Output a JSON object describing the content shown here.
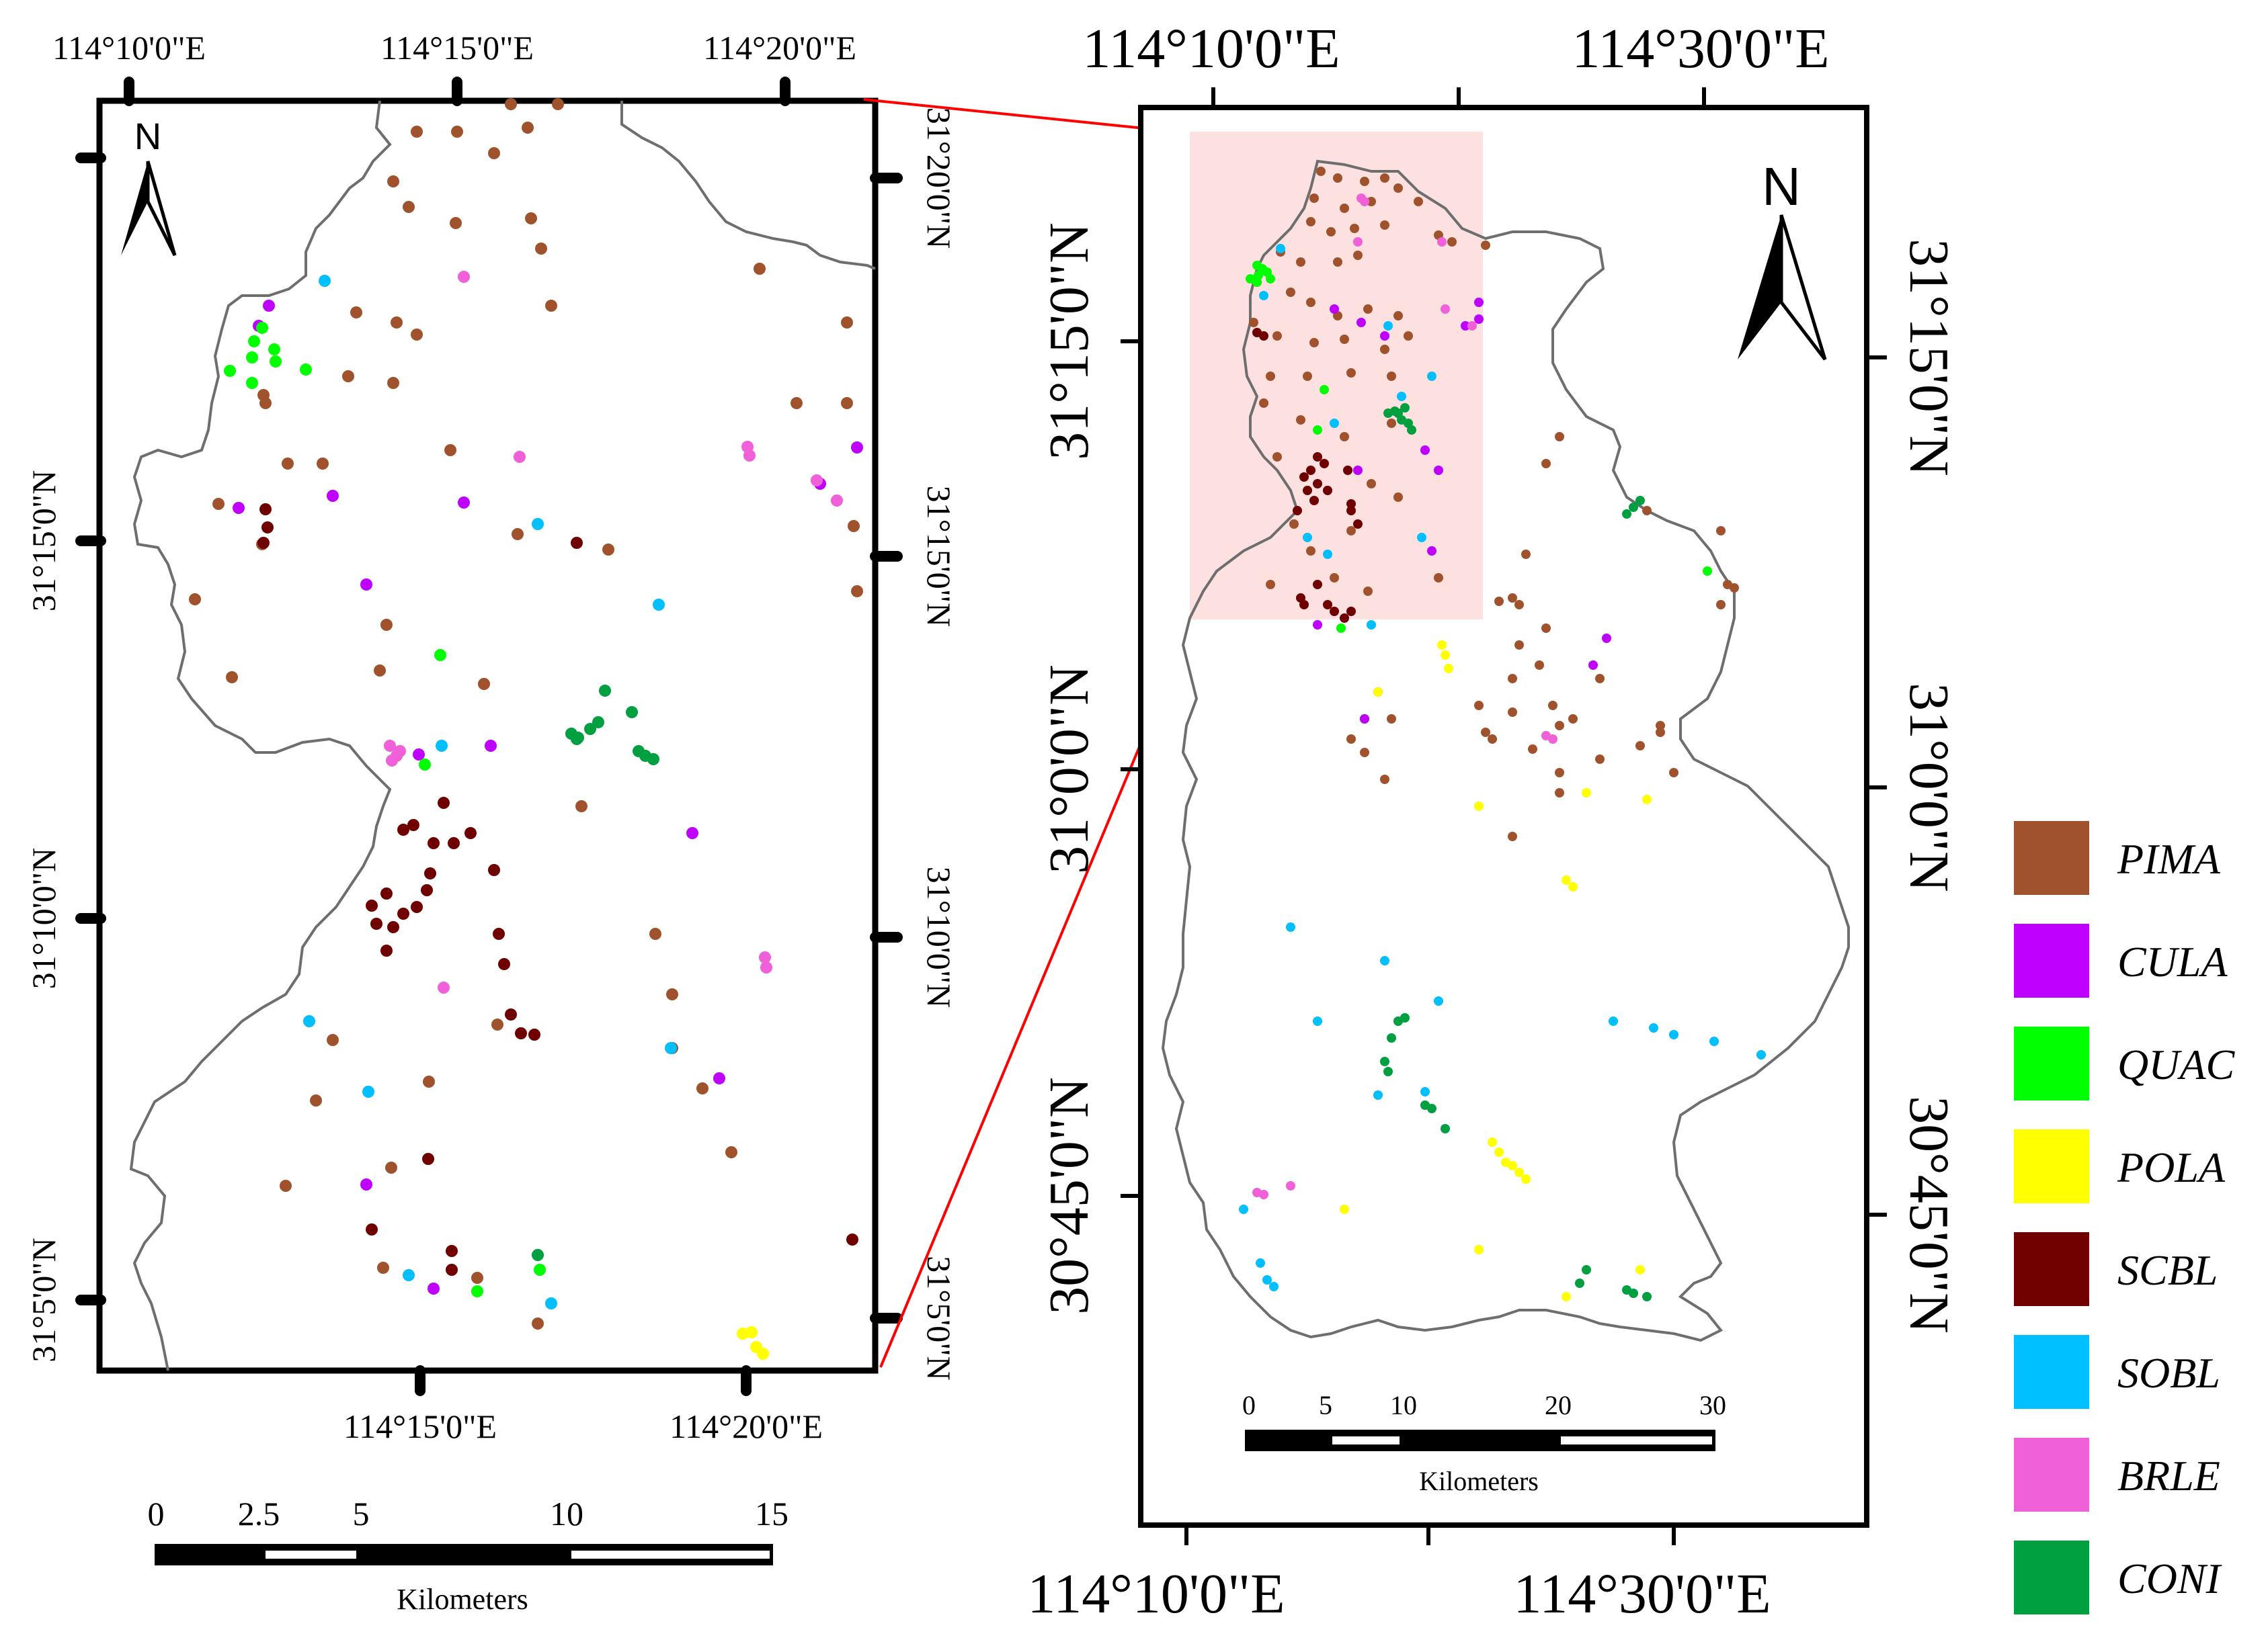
{
  "left_panel": {
    "top_lon_labels": [
      "114°10'0\"E",
      "114°15'0\"E",
      "114°20'0\"E"
    ],
    "bottom_lon_labels": [
      "114°15'0\"E",
      "114°20'0\"E"
    ],
    "left_lat_labels": [
      "31°15'0\"N",
      "31°10'0\"N",
      "31°5'0\"N"
    ],
    "right_lat_labels": [
      "31°20'0\"N",
      "31°15'0\"N",
      "31°10'0\"N",
      "31°5'0\"N"
    ],
    "north_label": "N",
    "scale_ticks": [
      "0",
      "2.5",
      "5",
      "10",
      "15"
    ],
    "scale_unit": "Kilometers"
  },
  "right_panel": {
    "top_lon_labels": [
      "114°10'0\"E",
      "114°30'0\"E"
    ],
    "bottom_lon_labels": [
      "114°10'0\"E",
      "114°30'0\"E"
    ],
    "left_lat_labels": [
      "31°15'0\"N",
      "31°0'0\"N",
      "30°45'0\"N"
    ],
    "right_lat_labels": [
      "31°15'0\"N",
      "31°0'0\"N",
      "30°45'0\"N"
    ],
    "north_label": "N",
    "scale_ticks": [
      "0",
      "5",
      "10",
      "20",
      "30"
    ],
    "scale_unit": "Kilometers"
  },
  "legend": [
    {
      "code": "PIMA",
      "color": "#A0522D"
    },
    {
      "code": "CULA",
      "color": "#BF00FF"
    },
    {
      "code": "QUAC",
      "color": "#00FF00"
    },
    {
      "code": "POLA",
      "color": "#FFFF00"
    },
    {
      "code": "SCBL",
      "color": "#700000"
    },
    {
      "code": "SOBL",
      "color": "#00BFFF"
    },
    {
      "code": "BRLE",
      "color": "#F060D8"
    },
    {
      "code": "CONI",
      "color": "#00A040"
    }
  ],
  "colors": {
    "boundary": "#6e6e6e",
    "inset_highlight": "#fde0e0",
    "connector": "#ff0000"
  },
  "icons": [
    "north-arrow-icon"
  ]
}
